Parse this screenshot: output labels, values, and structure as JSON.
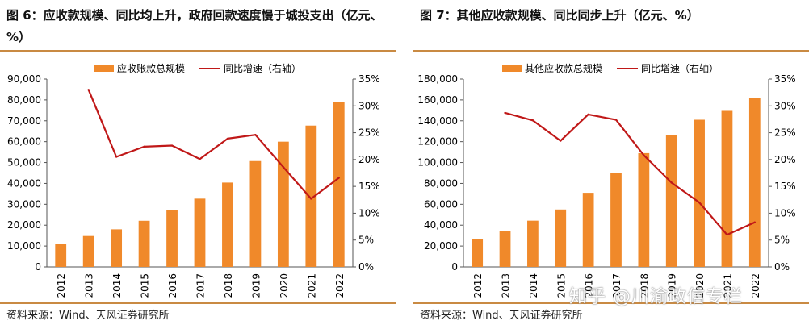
{
  "charts": [
    {
      "title": "图 6：应收款规模、同比均上升，政府回款速度慢于城投支出（亿元、%）",
      "source": "资料来源：Wind、天风证券研究所",
      "chart_data": {
        "type": "bar",
        "categories": [
          "2012",
          "2013",
          "2014",
          "2015",
          "2016",
          "2017",
          "2018",
          "2019",
          "2020",
          "2021",
          "2022"
        ],
        "series": [
          {
            "name": "应收账款总规模",
            "type": "bar",
            "axis": "left",
            "color": "#f0892a",
            "values": [
              11000,
              14800,
              18000,
              22100,
              27100,
              32700,
              40400,
              50700,
              60000,
              67700,
              78900
            ]
          },
          {
            "name": "同比增速（右轴）",
            "type": "line",
            "axis": "right",
            "color": "#c01818",
            "values": [
              null,
              33.0,
              20.5,
              22.4,
              22.6,
              20.1,
              23.9,
              24.6,
              18.6,
              12.7,
              16.6
            ]
          }
        ],
        "ylim": [
          0,
          90000
        ],
        "yticks": [
          0,
          10000,
          20000,
          30000,
          40000,
          50000,
          60000,
          70000,
          80000,
          90000
        ],
        "ytick_labels": [
          "0",
          "10,000",
          "20,000",
          "30,000",
          "40,000",
          "50,000",
          "60,000",
          "70,000",
          "80,000",
          "90,000"
        ],
        "y2lim": [
          0,
          35
        ],
        "y2ticks": [
          0,
          5,
          10,
          15,
          20,
          25,
          30,
          35
        ],
        "y2tick_labels": [
          "0%",
          "5%",
          "10%",
          "15%",
          "20%",
          "25%",
          "30%",
          "35%"
        ],
        "legend": "top-center",
        "grid": false
      }
    },
    {
      "title": "图 7：其他应收款规模、同比同步上升（亿元、%）",
      "source": "资料来源：Wind、天风证券研究所",
      "chart_data": {
        "type": "bar",
        "categories": [
          "2012",
          "2013",
          "2014",
          "2015",
          "2016",
          "2017",
          "2018",
          "2019",
          "2020",
          "2021",
          "2022"
        ],
        "series": [
          {
            "name": "其他应收款总规模",
            "type": "bar",
            "axis": "left",
            "color": "#f0892a",
            "values": [
              26700,
              34500,
              44300,
              55000,
              71000,
              90200,
              109000,
              126000,
              141000,
              149500,
              162000
            ]
          },
          {
            "name": "同比增速（右轴）",
            "type": "line",
            "axis": "right",
            "color": "#c01818",
            "values": [
              null,
              28.7,
              27.3,
              23.5,
              28.4,
              27.4,
              20.8,
              15.7,
              12.0,
              6.0,
              8.3
            ]
          }
        ],
        "ylim": [
          0,
          180000
        ],
        "yticks": [
          0,
          20000,
          40000,
          60000,
          80000,
          100000,
          120000,
          140000,
          160000,
          180000
        ],
        "ytick_labels": [
          "0",
          "20,000",
          "40,000",
          "60,000",
          "80,000",
          "100,000",
          "120,000",
          "140,000",
          "160,000",
          "180,000"
        ],
        "y2lim": [
          0,
          35
        ],
        "y2ticks": [
          0,
          5,
          10,
          15,
          20,
          25,
          30,
          35
        ],
        "y2tick_labels": [
          "0%",
          "5%",
          "10%",
          "15%",
          "20%",
          "25%",
          "30%",
          "35%"
        ],
        "legend": "top-center",
        "grid": false
      }
    }
  ],
  "watermark": "知乎 @川渝政信专栏"
}
